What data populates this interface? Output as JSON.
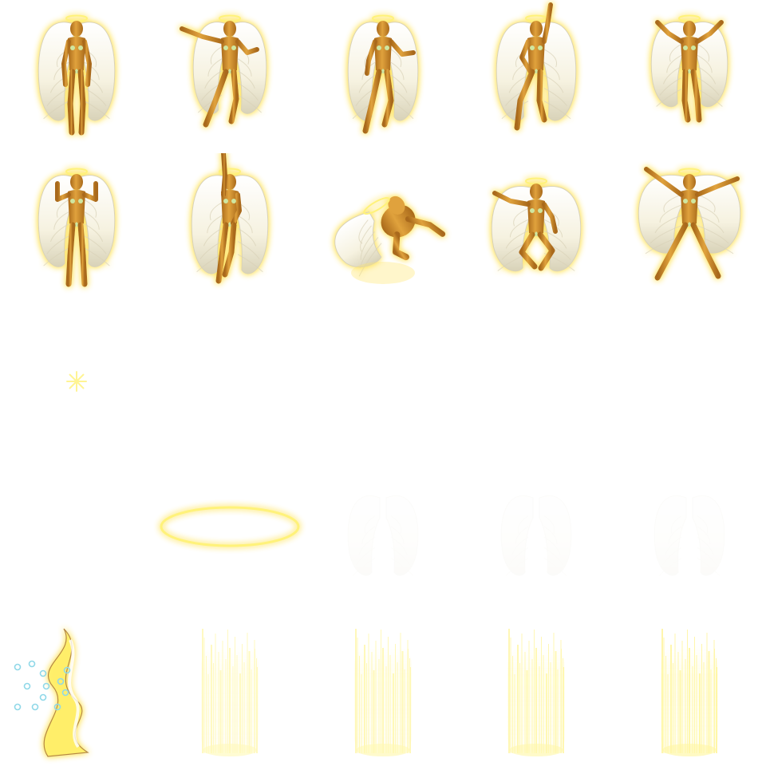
{
  "sheet": {
    "columns": 5,
    "rows": 5,
    "palette": {
      "background": "#ffffff",
      "skin": "#e0a23c",
      "skin_dark": "#a9691b",
      "glow": "#ffe66a",
      "wing": "#f6f2e0",
      "wing_shade": "#d8d2b8",
      "halo": "#fff27a",
      "leaf": "#cfe6a0",
      "beam": "#fff6a0",
      "sparkle": "#8fd8e8",
      "fire": "#fff06a"
    },
    "sprites": [
      {
        "id": "angel-standing-front",
        "kind": "angel",
        "pose": "stand"
      },
      {
        "id": "angel-pointing-left",
        "kind": "angel",
        "pose": "point"
      },
      {
        "id": "angel-reaching",
        "kind": "angel",
        "pose": "reach"
      },
      {
        "id": "angel-arm-raised",
        "kind": "angel",
        "pose": "raise"
      },
      {
        "id": "angel-arms-spread",
        "kind": "angel",
        "pose": "spread"
      },
      {
        "id": "angel-flexing",
        "kind": "angel",
        "pose": "flex"
      },
      {
        "id": "angel-reaching-up",
        "kind": "angel",
        "pose": "up"
      },
      {
        "id": "angel-fallen",
        "kind": "angel",
        "pose": "fallen"
      },
      {
        "id": "angel-kneeling",
        "kind": "angel",
        "pose": "kneel"
      },
      {
        "id": "angel-star-jump",
        "kind": "angel",
        "pose": "star"
      },
      {
        "id": "sparkle-star",
        "kind": "sparkle"
      },
      {
        "id": "empty-frame",
        "kind": "empty"
      },
      {
        "id": "empty-frame",
        "kind": "empty"
      },
      {
        "id": "empty-frame",
        "kind": "empty"
      },
      {
        "id": "empty-frame",
        "kind": "empty"
      },
      {
        "id": "empty-frame",
        "kind": "empty"
      },
      {
        "id": "halo-ring",
        "kind": "halo"
      },
      {
        "id": "faint-wing-ghost",
        "kind": "ghost"
      },
      {
        "id": "faint-wing-ghost",
        "kind": "ghost"
      },
      {
        "id": "faint-wing-ghost",
        "kind": "ghost"
      },
      {
        "id": "holy-fire-pillar",
        "kind": "fire"
      },
      {
        "id": "light-beam",
        "kind": "beam",
        "intensity": 0.7
      },
      {
        "id": "light-beam",
        "kind": "beam",
        "intensity": 0.8
      },
      {
        "id": "light-beam",
        "kind": "beam",
        "intensity": 0.85
      },
      {
        "id": "light-beam",
        "kind": "beam",
        "intensity": 0.95
      }
    ]
  }
}
